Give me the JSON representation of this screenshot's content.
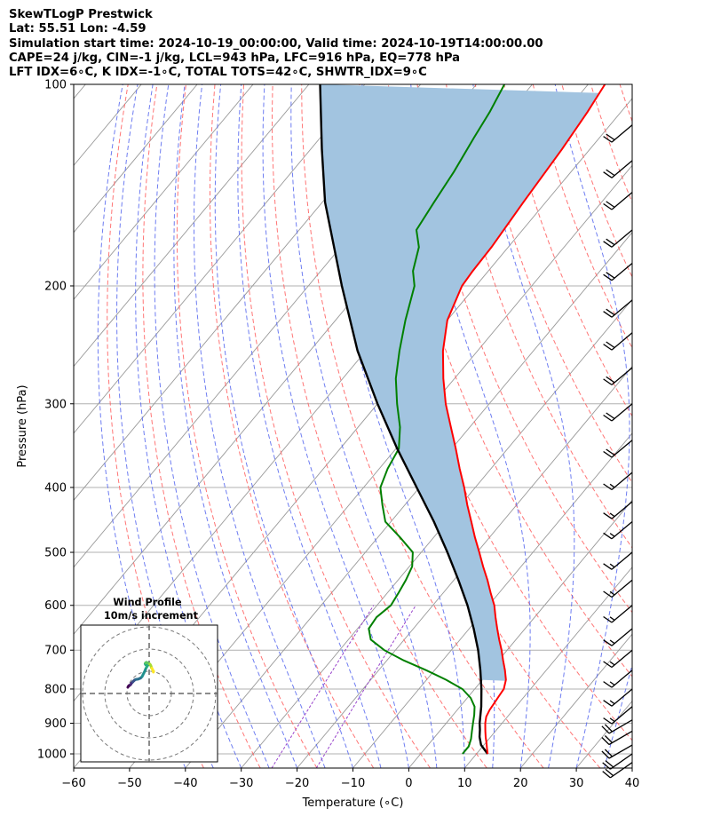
{
  "header": {
    "line1": "SkewTLogP Prestwick",
    "line2": "Lat: 55.51   Lon: -4.59",
    "line3": "Simulation start time: 2024-10-19_00:00:00, Valid time: 2024-10-19T14:00:00.00",
    "line4": "CAPE=24 j/kg, CIN=-1 j/kg, LCL=943 hPa, LFC=916 hPa, EQ=778 hPa",
    "line5": "LFT IDX=6∘C, K IDX=-1∘C, TOTAL TOTS=42∘C, SHWTR_IDX=9∘C"
  },
  "chart_data": [
    {
      "type": "skew-t",
      "xlabel": "Temperature (∘C)",
      "ylabel": "Pressure (hPa)",
      "xlim": [
        -60,
        40
      ],
      "ylim": [
        1050,
        100
      ],
      "yscale": "log",
      "skew_deg_per_decade": 100,
      "x_ticks": [
        -60,
        -50,
        -40,
        -30,
        -20,
        -10,
        0,
        10,
        20,
        30,
        40
      ],
      "y_ticks": [
        100,
        200,
        300,
        400,
        500,
        600,
        700,
        800,
        900,
        1000
      ],
      "x_tick_labels": [
        "−60",
        "−50",
        "−40",
        "−30",
        "−20",
        "−10",
        "0",
        "10",
        "20",
        "30",
        "40"
      ],
      "y_tick_labels": [
        "100",
        "200",
        "300",
        "400",
        "500",
        "600",
        "700",
        "800",
        "900",
        "1000"
      ],
      "grid": true,
      "colors": {
        "temperature": "#ff0000",
        "dewpoint": "#008000",
        "parcel": "#000000",
        "cape_fill": "#a2c4e0",
        "dry_adiabat": "#ff6666",
        "moist_adiabat": "#5566ee",
        "mixing_ratio": "#9944cc",
        "isotherm": "#999999"
      },
      "series": [
        {
          "key": "temperature",
          "points": [
            [
              1000,
              12.0
            ],
            [
              980,
              11.0
            ],
            [
              960,
              10.0
            ],
            [
              945,
              9.2
            ],
            [
              925,
              8.2
            ],
            [
              900,
              7.0
            ],
            [
              880,
              6.2
            ],
            [
              860,
              5.8
            ],
            [
              840,
              5.6
            ],
            [
              820,
              5.4
            ],
            [
              800,
              5.2
            ],
            [
              775,
              4.2
            ],
            [
              750,
              2.6
            ],
            [
              725,
              0.8
            ],
            [
              700,
              -1.0
            ],
            [
              675,
              -3.0
            ],
            [
              650,
              -5.0
            ],
            [
              625,
              -7.0
            ],
            [
              600,
              -9.0
            ],
            [
              575,
              -11.5
            ],
            [
              550,
              -14.0
            ],
            [
              525,
              -16.8
            ],
            [
              500,
              -19.6
            ],
            [
              475,
              -22.6
            ],
            [
              450,
              -25.6
            ],
            [
              425,
              -28.8
            ],
            [
              400,
              -32.0
            ],
            [
              375,
              -35.6
            ],
            [
              350,
              -39.3
            ],
            [
              325,
              -43.4
            ],
            [
              300,
              -47.8
            ],
            [
              275,
              -52.0
            ],
            [
              250,
              -56.2
            ],
            [
              225,
              -60.0
            ],
            [
              200,
              -62.5
            ],
            [
              190,
              -62.8
            ],
            [
              175,
              -63.0
            ],
            [
              150,
              -64.0
            ],
            [
              125,
              -65.0
            ],
            [
              110,
              -66.0
            ],
            [
              100,
              -67.0
            ]
          ]
        },
        {
          "key": "dewpoint",
          "points": [
            [
              1000,
              7.5
            ],
            [
              975,
              7.5
            ],
            [
              950,
              6.8
            ],
            [
              925,
              5.8
            ],
            [
              900,
              4.8
            ],
            [
              875,
              3.8
            ],
            [
              850,
              2.6
            ],
            [
              825,
              0.6
            ],
            [
              800,
              -2.2
            ],
            [
              775,
              -6.5
            ],
            [
              750,
              -11.5
            ],
            [
              725,
              -17.0
            ],
            [
              700,
              -22.0
            ],
            [
              675,
              -26.0
            ],
            [
              650,
              -28.0
            ],
            [
              625,
              -28.3
            ],
            [
              600,
              -27.5
            ],
            [
              575,
              -28.0
            ],
            [
              550,
              -28.6
            ],
            [
              525,
              -29.5
            ],
            [
              500,
              -31.5
            ],
            [
              475,
              -36.0
            ],
            [
              450,
              -41.0
            ],
            [
              425,
              -44.0
            ],
            [
              400,
              -47.0
            ],
            [
              375,
              -48.5
            ],
            [
              350,
              -49.5
            ],
            [
              325,
              -52.5
            ],
            [
              300,
              -56.5
            ],
            [
              275,
              -60.5
            ],
            [
              250,
              -64.0
            ],
            [
              225,
              -67.5
            ],
            [
              200,
              -71.0
            ],
            [
              190,
              -73.5
            ],
            [
              175,
              -76.0
            ],
            [
              165,
              -79.0
            ],
            [
              150,
              -80.0
            ],
            [
              135,
              -81.0
            ],
            [
              120,
              -82.5
            ],
            [
              110,
              -83.5
            ],
            [
              100,
              -85.0
            ]
          ]
        },
        {
          "key": "parcel",
          "points": [
            [
              1000,
              12.0
            ],
            [
              970,
              9.5
            ],
            [
              943,
              8.0
            ],
            [
              920,
              7.0
            ],
            [
              900,
              6.0
            ],
            [
              850,
              3.8
            ],
            [
              800,
              1.2
            ],
            [
              750,
              -1.8
            ],
            [
              700,
              -5.2
            ],
            [
              650,
              -9.2
            ],
            [
              600,
              -13.8
            ],
            [
              550,
              -19.2
            ],
            [
              500,
              -25.3
            ],
            [
              450,
              -32.3
            ],
            [
              400,
              -40.5
            ],
            [
              350,
              -49.8
            ],
            [
              300,
              -60.0
            ],
            [
              250,
              -71.5
            ],
            [
              200,
              -84.0
            ],
            [
              150,
              -99.5
            ],
            [
              125,
              -108.0
            ],
            [
              100,
              -118.0
            ]
          ]
        }
      ],
      "wind_barbs": [
        {
          "p": 1030,
          "dir": 235,
          "kt": 20
        },
        {
          "p": 1000,
          "dir": 235,
          "kt": 20
        },
        {
          "p": 970,
          "dir": 240,
          "kt": 20
        },
        {
          "p": 925,
          "dir": 240,
          "kt": 20
        },
        {
          "p": 890,
          "dir": 240,
          "kt": 20
        },
        {
          "p": 850,
          "dir": 230,
          "kt": 15
        },
        {
          "p": 800,
          "dir": 230,
          "kt": 15
        },
        {
          "p": 750,
          "dir": 230,
          "kt": 15
        },
        {
          "p": 700,
          "dir": 230,
          "kt": 15
        },
        {
          "p": 650,
          "dir": 230,
          "kt": 15
        },
        {
          "p": 600,
          "dir": 230,
          "kt": 15
        },
        {
          "p": 550,
          "dir": 230,
          "kt": 15
        },
        {
          "p": 500,
          "dir": 230,
          "kt": 15
        },
        {
          "p": 450,
          "dir": 230,
          "kt": 15
        },
        {
          "p": 420,
          "dir": 230,
          "kt": 15
        },
        {
          "p": 380,
          "dir": 230,
          "kt": 15
        },
        {
          "p": 340,
          "dir": 230,
          "kt": 20
        },
        {
          "p": 300,
          "dir": 230,
          "kt": 20
        },
        {
          "p": 265,
          "dir": 230,
          "kt": 20
        },
        {
          "p": 235,
          "dir": 230,
          "kt": 20
        },
        {
          "p": 210,
          "dir": 230,
          "kt": 20
        },
        {
          "p": 185,
          "dir": 230,
          "kt": 20
        },
        {
          "p": 165,
          "dir": 230,
          "kt": 20
        },
        {
          "p": 145,
          "dir": 230,
          "kt": 20
        },
        {
          "p": 130,
          "dir": 230,
          "kt": 20
        },
        {
          "p": 115,
          "dir": 230,
          "kt": 20
        }
      ]
    },
    {
      "type": "hodograph",
      "title_line1": "Wind Profile",
      "title_line2": "10m/s increment",
      "rings": [
        10,
        20,
        30
      ],
      "colormap": "viridis",
      "points": [
        [
          4,
          11
        ],
        [
          4.5,
          12
        ],
        [
          5,
          12.5
        ],
        [
          5.5,
          13
        ],
        [
          6,
          13.2
        ],
        [
          6.5,
          13.5
        ],
        [
          7,
          14
        ],
        [
          7.5,
          14.5
        ],
        [
          8,
          15.5
        ],
        [
          8.5,
          16
        ],
        [
          9,
          16.5
        ],
        [
          9.5,
          17
        ],
        [
          10,
          17.6
        ],
        [
          10.8,
          18.3
        ],
        [
          11.5,
          19
        ],
        [
          12,
          19.3
        ],
        [
          13,
          19.8
        ],
        [
          14.5,
          20
        ],
        [
          16,
          20.3
        ],
        [
          17.5,
          21
        ],
        [
          18.5,
          21.5
        ],
        [
          20,
          23
        ],
        [
          21,
          25
        ],
        [
          22,
          27
        ],
        [
          23,
          29
        ],
        [
          24,
          31.5
        ],
        [
          25,
          33.5
        ],
        [
          26,
          35
        ],
        [
          25,
          36
        ],
        [
          24,
          36.5
        ],
        [
          23.5,
          37.5
        ],
        [
          24,
          38.5
        ],
        [
          25,
          39
        ],
        [
          26,
          38.5
        ],
        [
          27,
          38
        ],
        [
          28,
          37.5
        ],
        [
          28.8,
          37
        ],
        [
          29.5,
          36
        ],
        [
          30,
          35
        ],
        [
          30.3,
          34
        ],
        [
          30.5,
          33
        ],
        [
          31,
          32.5
        ],
        [
          31.5,
          31.5
        ],
        [
          32,
          30.5
        ],
        [
          32.5,
          29.5
        ],
        [
          33,
          29
        ],
        [
          32.8,
          28
        ]
      ]
    }
  ]
}
